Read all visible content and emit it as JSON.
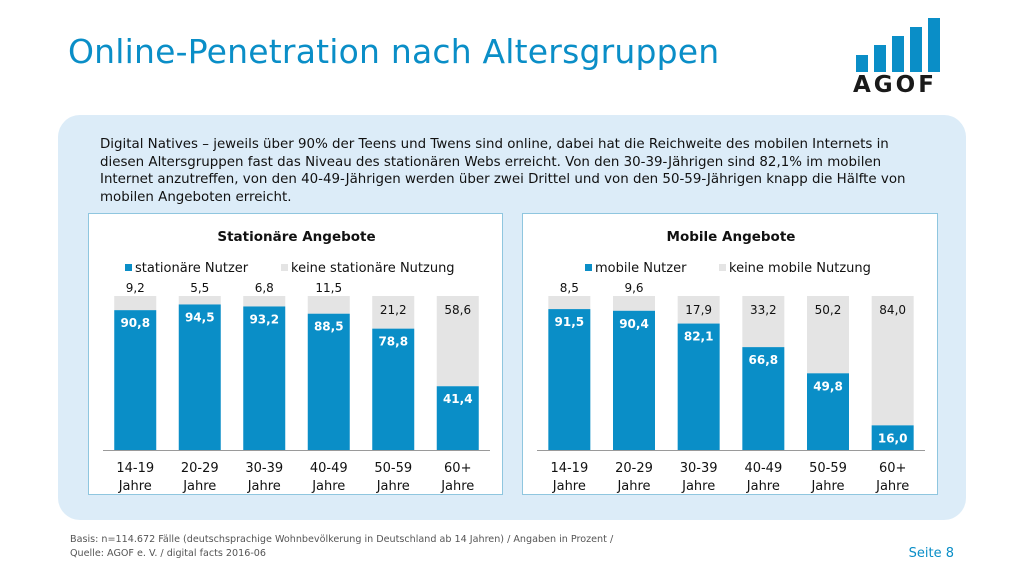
{
  "header": {
    "title": "Online-Penetration nach Altersgruppen"
  },
  "logo": {
    "text": "AGOF",
    "icon": "bar-chart-logo-icon"
  },
  "intro": "Digital Natives – jeweils über 90% der Teens und Twens sind online, dabei hat die Reichweite des mobilen Internets in diesen Altersgruppen fast das Niveau des stationären Webs erreicht. Von den 30-39-Jährigen sind 82,1% im mobilen Internet anzutreffen, von den 40-49-Jährigen werden über zwei Drittel und von den 50-59-Jährigen knapp die Hälfte von mobilen Angeboten erreicht.",
  "colors": {
    "accent": "#0a8ec7",
    "bar_primary": "#0a8ec7",
    "bar_secondary": "#e4e4e4",
    "panel": "#dcecf8"
  },
  "chart_data": [
    {
      "type": "bar",
      "stacked": true,
      "title": "Stationäre Angebote",
      "categories": [
        "14-19 Jahre",
        "20-29 Jahre",
        "30-39 Jahre",
        "40-49 Jahre",
        "50-59 Jahre",
        "60+ Jahre"
      ],
      "series": [
        {
          "name": "stationäre Nutzer",
          "values": [
            90.8,
            94.5,
            93.2,
            88.5,
            78.8,
            41.4
          ],
          "labels": [
            "90,8",
            "94,5",
            "93,2",
            "88,5",
            "78,8",
            "41,4"
          ]
        },
        {
          "name": "keine stationäre Nutzung",
          "values": [
            9.2,
            5.5,
            6.8,
            11.5,
            21.2,
            58.6
          ],
          "labels": [
            "9,2",
            "5,5",
            "6,8",
            "11,5",
            "21,2",
            "58,6"
          ]
        }
      ],
      "ylim": [
        0,
        100
      ],
      "legend": "top"
    },
    {
      "type": "bar",
      "stacked": true,
      "title": "Mobile Angebote",
      "categories": [
        "14-19 Jahre",
        "20-29 Jahre",
        "30-39 Jahre",
        "40-49 Jahre",
        "50-59 Jahre",
        "60+ Jahre"
      ],
      "series": [
        {
          "name": "mobile Nutzer",
          "values": [
            91.5,
            90.4,
            82.1,
            66.8,
            49.8,
            16.0
          ],
          "labels": [
            "91,5",
            "90,4",
            "82,1",
            "66,8",
            "49,8",
            "16,0"
          ]
        },
        {
          "name": "keine mobile Nutzung",
          "values": [
            8.5,
            9.6,
            17.9,
            33.2,
            50.2,
            84.0
          ],
          "labels": [
            "8,5",
            "9,6",
            "17,9",
            "33,2",
            "50,2",
            "84,0"
          ]
        }
      ],
      "ylim": [
        0,
        100
      ],
      "legend": "top"
    }
  ],
  "footer": {
    "line1": "Basis: n=114.672 Fälle (deutschsprachige Wohnbevölkerung in Deutschland ab 14 Jahren) / Angaben in Prozent /",
    "line2": "Quelle: AGOF e. V. / digital facts 2016-06"
  },
  "page": "Seite 8"
}
